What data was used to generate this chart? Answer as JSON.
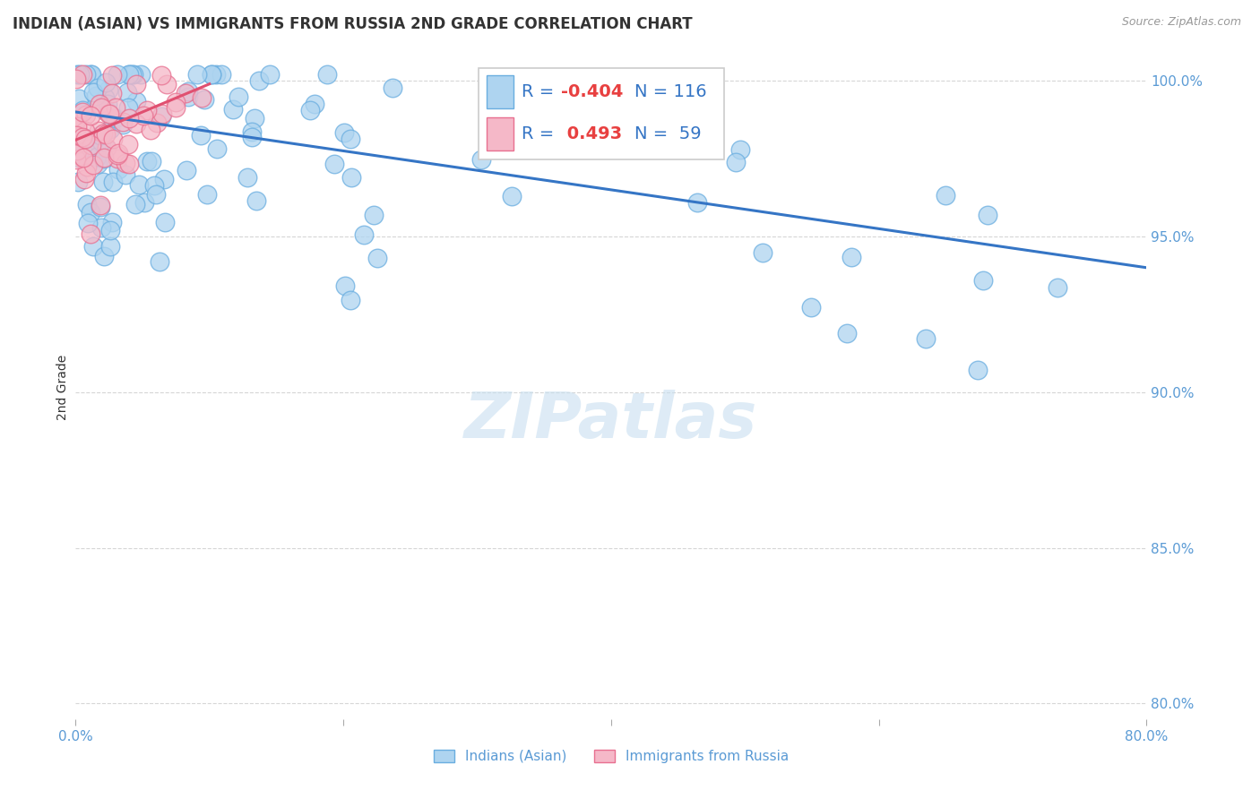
{
  "title": "INDIAN (ASIAN) VS IMMIGRANTS FROM RUSSIA 2ND GRADE CORRELATION CHART",
  "source_text": "Source: ZipAtlas.com",
  "ylabel": "2nd Grade",
  "x_range": [
    0.0,
    0.8
  ],
  "y_range": [
    0.795,
    1.008
  ],
  "color_blue": "#AED4F0",
  "color_blue_edge": "#6AAEE0",
  "color_blue_line": "#3575C5",
  "color_pink": "#F5B8C8",
  "color_pink_edge": "#E87090",
  "color_pink_line": "#E05070",
  "color_axis_text": "#5B9BD5",
  "color_grid": "#CCCCCC",
  "background_color": "#FFFFFF",
  "title_fontsize": 12,
  "tick_fontsize": 11,
  "legend_r_blue": "-0.404",
  "legend_n_blue": "116",
  "legend_r_pink": "0.493",
  "legend_n_pink": "59"
}
